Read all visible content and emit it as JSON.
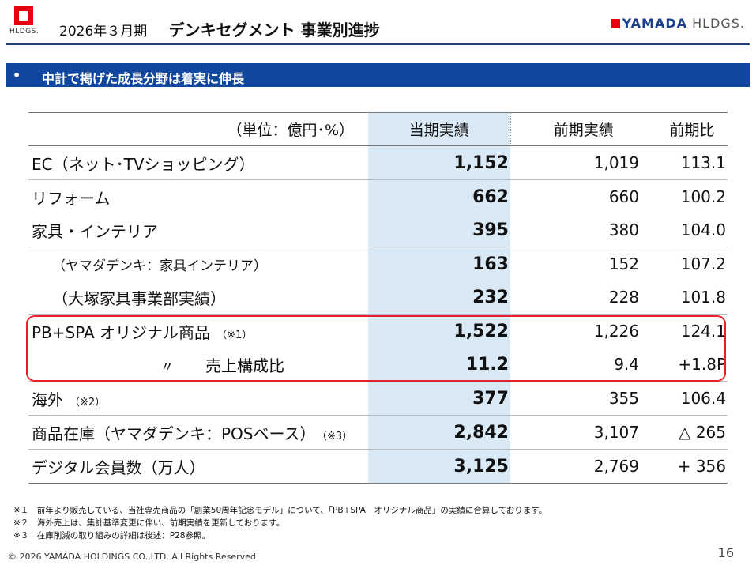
{
  "header": {
    "left_logo_text": "HLDGS.",
    "period": "2026年３月期",
    "title": "デンキセグメント 事業別進捗",
    "right_logo_brand": "YAMADA",
    "right_logo_suffix": "HLDGS."
  },
  "banner": {
    "bullet": "•",
    "text": "中計で掲げた成長分野は着実に伸長"
  },
  "table": {
    "unit_label": "（単位：億円･%）",
    "col_current": "当期実績",
    "col_previous": "前期実績",
    "col_ratio": "前期比",
    "rows": [
      {
        "label": "EC（ネット･TVショッピング）",
        "current": "1,152",
        "previous": "1,019",
        "ratio": "113.1"
      },
      {
        "label": "リフォーム",
        "current": "662",
        "previous": "660",
        "ratio": "100.2"
      },
      {
        "label": "家具・インテリア",
        "current": "395",
        "previous": "380",
        "ratio": "104.0"
      },
      {
        "label": "（ヤマダデンキ：家具インテリア）",
        "current": "163",
        "previous": "152",
        "ratio": "107.2"
      },
      {
        "label": "（大塚家具事業部実績）",
        "current": "232",
        "previous": "228",
        "ratio": "101.8"
      },
      {
        "label": "PB+SPA オリジナル商品",
        "note": "（※1）",
        "current": "1,522",
        "previous": "1,226",
        "ratio": "124.1"
      },
      {
        "label_ditto": "〃",
        "label": "売上構成比",
        "current": "11.2",
        "previous": "9.4",
        "ratio": "+1.8P"
      },
      {
        "label": "海外",
        "note": "（※2）",
        "current": "377",
        "previous": "355",
        "ratio": "106.4"
      },
      {
        "label": "商品在庫（ヤマダデンキ：POSベース）",
        "note": "（※3）",
        "current": "2,842",
        "previous": "3,107",
        "ratio": "△ 265"
      },
      {
        "label": "デジタル会員数（万人）",
        "current": "3,125",
        "previous": "2,769",
        "ratio": "+ 356"
      }
    ]
  },
  "notes": [
    "※１　前年より販売している、当社専売商品の「創業50周年記念モデル」について、「PB+SPA　オリジナル商品」の実績に合算しております。",
    "※２　海外売上は、集計基準変更に伴い、前期実績を更新しております。",
    "※３　在庫削減の取り組みの詳細は後述：P28参照。"
  ],
  "footer": {
    "copyright": "© 2026 YAMADA HOLDINGS CO.,LTD. All Rights Reserved",
    "page_number": "16"
  },
  "colors": {
    "accent": "#11479e",
    "highlight_column": "#dae9f6",
    "callout": "#e8202a",
    "brand_red": "#e60012"
  }
}
